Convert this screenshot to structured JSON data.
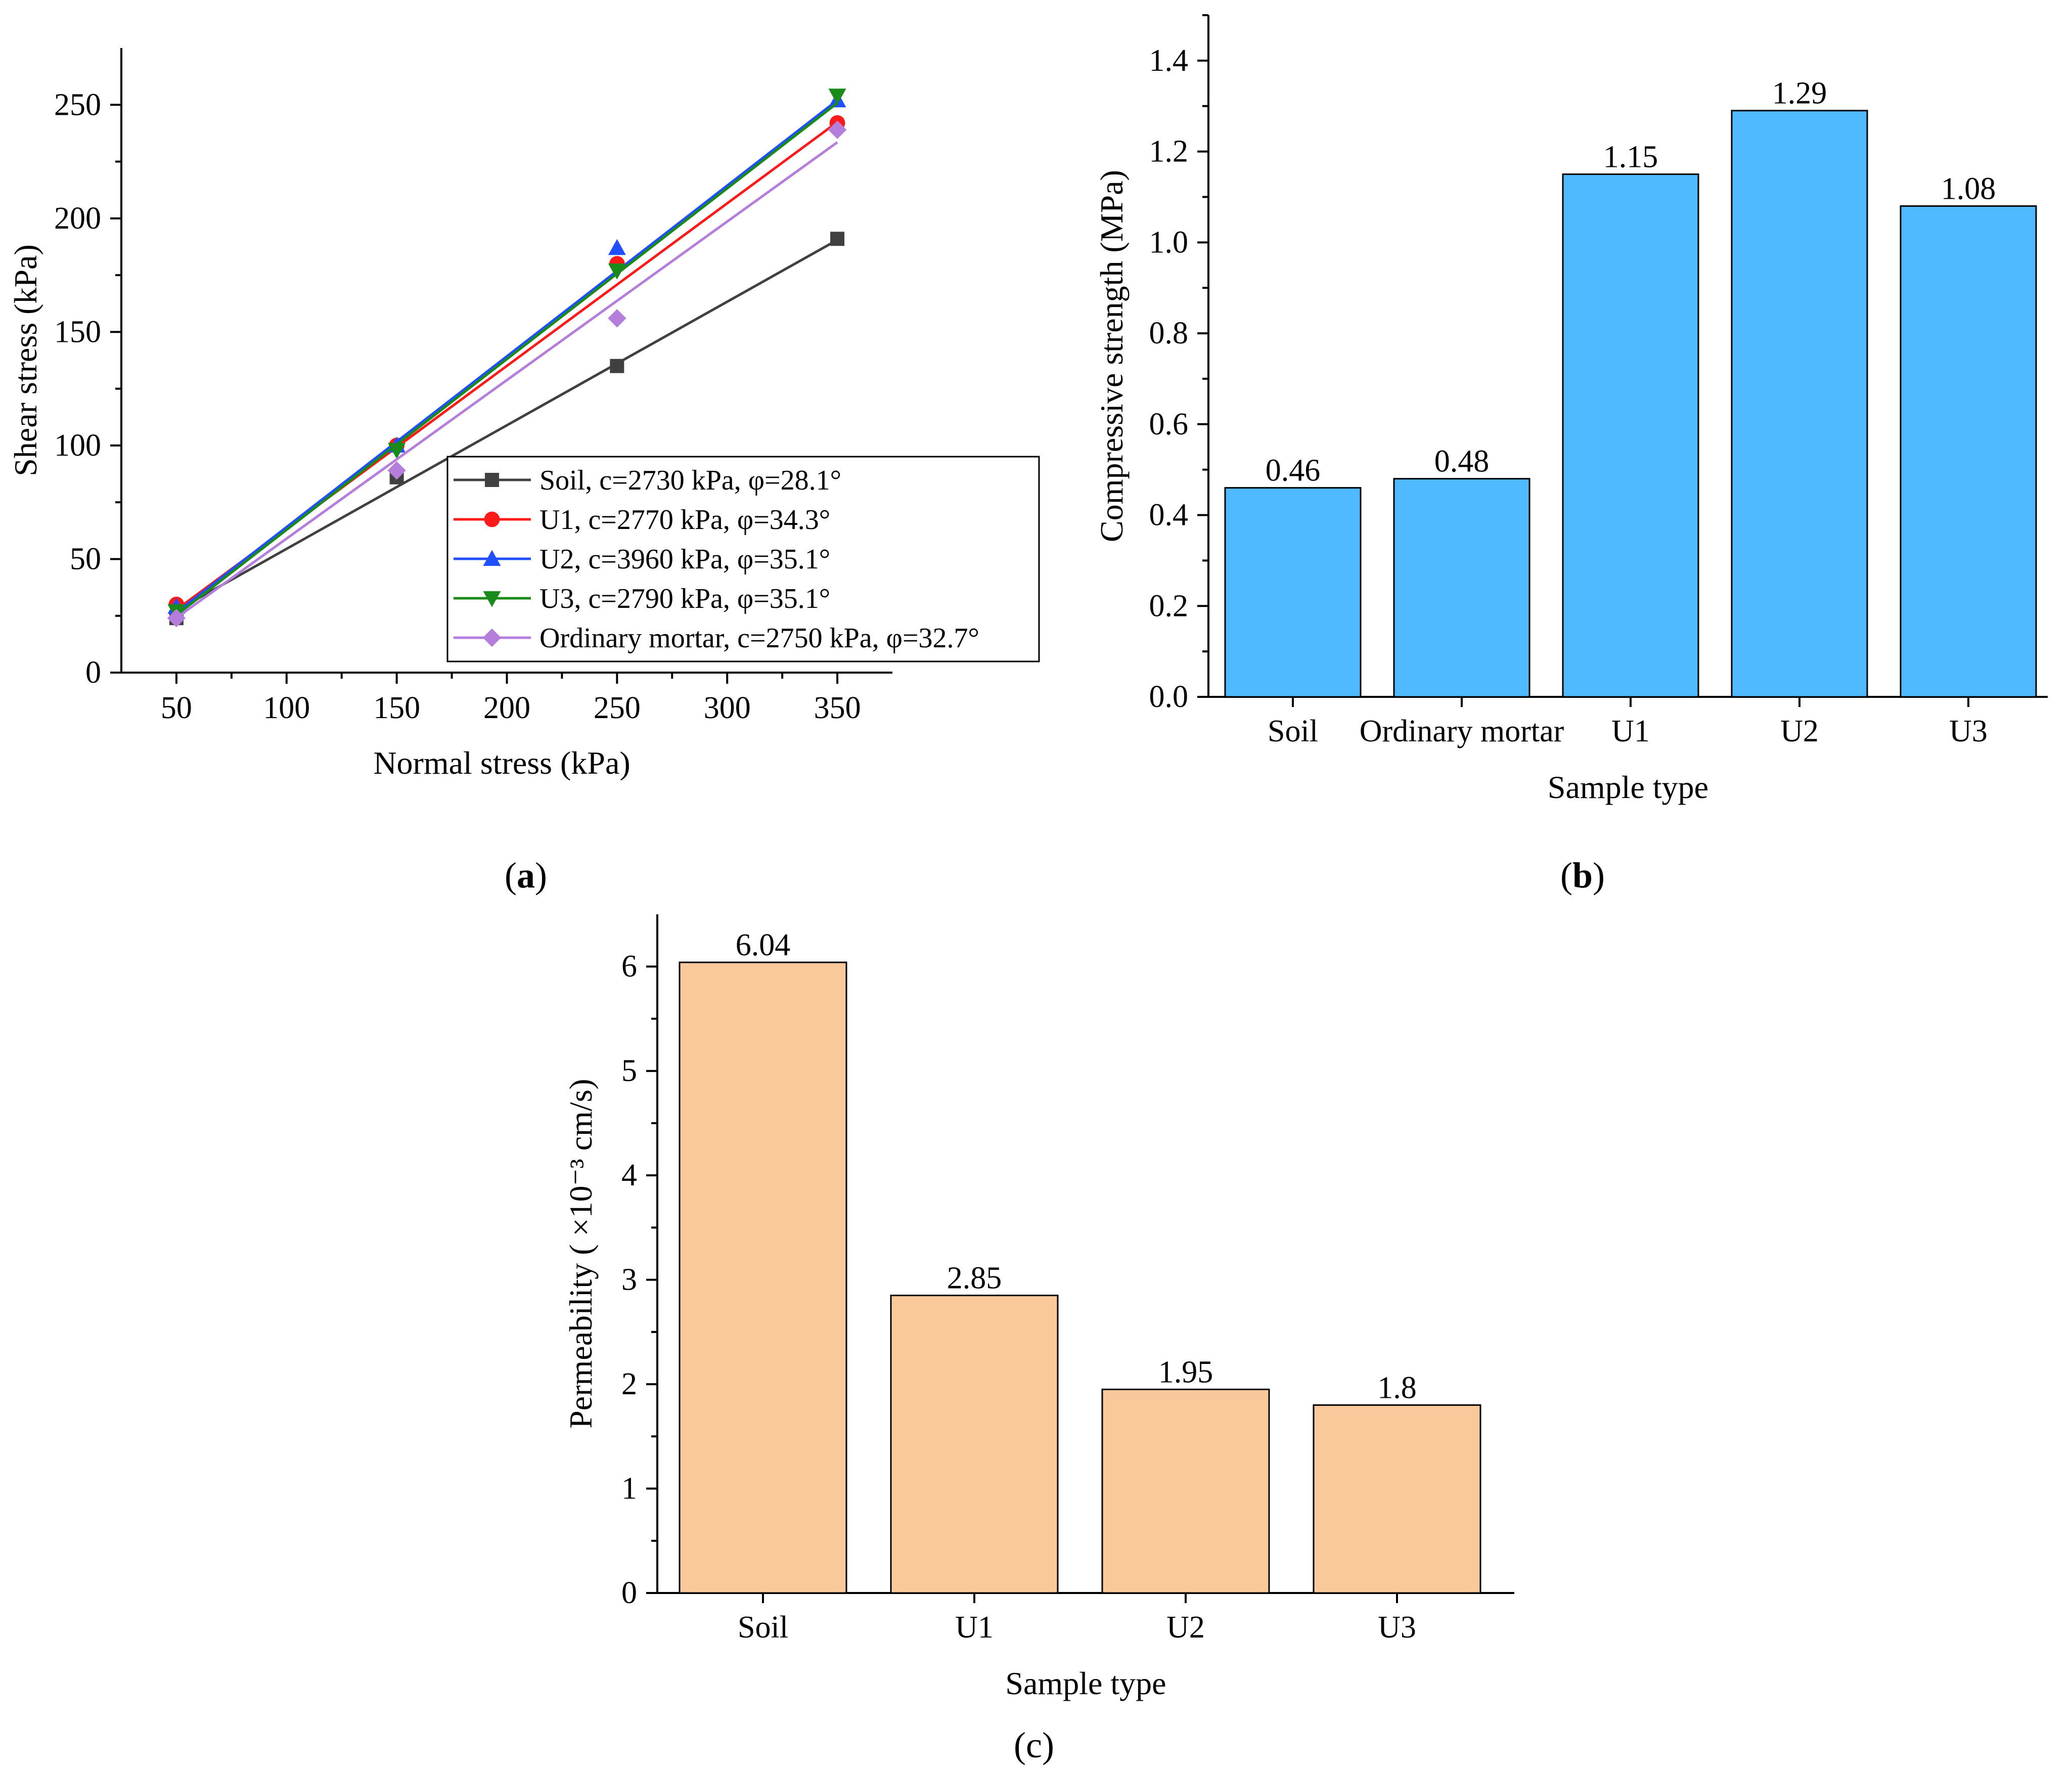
{
  "chart_data": [
    {
      "id": "a",
      "type": "scatter",
      "panel_label": "a",
      "xlabel": "Normal stress  (kPa)",
      "ylabel": "Shear stress (kPa)",
      "xlim": [
        25,
        375
      ],
      "ylim": [
        0,
        275
      ],
      "xticks": [
        50,
        100,
        150,
        200,
        250,
        300,
        350
      ],
      "yticks": [
        0,
        50,
        100,
        150,
        200,
        250
      ],
      "x": [
        50,
        150,
        250,
        350
      ],
      "legend_position": "bottom-right",
      "series": [
        {
          "name": "Soil, c=2730 kPa, φ=28.1°",
          "color": "#404040",
          "marker": "square",
          "values": [
            24,
            86,
            135,
            191
          ],
          "fit": [
            27.3,
            190.5
          ]
        },
        {
          "name": "U1, c=2770 kPa, φ=34.3°",
          "color": "#ff1a1a",
          "marker": "circle",
          "values": [
            30,
            100,
            180,
            242
          ],
          "fit": [
            27.7,
            242.4
          ]
        },
        {
          "name": "U2, c=3960 kPa, φ=35.1°",
          "color": "#1f4fff",
          "marker": "triangle-up",
          "values": [
            29,
            100,
            187,
            252
          ],
          "fit": [
            26.5,
            252.0
          ]
        },
        {
          "name": "U3, c=2790 kPa, φ=35.1°",
          "color": "#1a8a1a",
          "marker": "triangle-down",
          "values": [
            27,
            98,
            177,
            254
          ],
          "fit": [
            25.3,
            250.8
          ]
        },
        {
          "name": "Ordinary mortar, c=2750 kPa, φ=32.7°",
          "color": "#b57edc",
          "marker": "diamond",
          "values": [
            24,
            89,
            156,
            239
          ],
          "fit": [
            24.1,
            233.5
          ]
        }
      ]
    },
    {
      "id": "b",
      "type": "bar",
      "panel_label": "b",
      "xlabel": "Sample type",
      "ylabel": "Compressive strength (MPa)",
      "ylim": [
        0,
        1.5
      ],
      "yticks": [
        "0.0",
        "0.2",
        "0.4",
        "0.6",
        "0.8",
        "1.0",
        "1.2",
        "1.4"
      ],
      "categories": [
        "Soil",
        "Ordinary mortar",
        "U1",
        "U2",
        "U3"
      ],
      "values": [
        0.46,
        0.48,
        1.15,
        1.29,
        1.08
      ],
      "data_labels": [
        "0.46",
        "0.48",
        "1.15",
        "1.29",
        "1.08"
      ],
      "bar_color": "#4fbaff"
    },
    {
      "id": "c",
      "type": "bar",
      "panel_label": "c",
      "xlabel": "Sample type",
      "ylabel": "Permeability ( ×10⁻³ cm/s)",
      "ylim": [
        0,
        6.5
      ],
      "yticks": [
        "0",
        "1",
        "2",
        "3",
        "4",
        "5",
        "6"
      ],
      "categories": [
        "Soil",
        "U1",
        "U2",
        "U3"
      ],
      "values": [
        6.04,
        2.85,
        1.95,
        1.8
      ],
      "data_labels": [
        "6.04",
        "2.85",
        "1.95",
        "1.8"
      ],
      "bar_color": "#f9c89b"
    }
  ]
}
